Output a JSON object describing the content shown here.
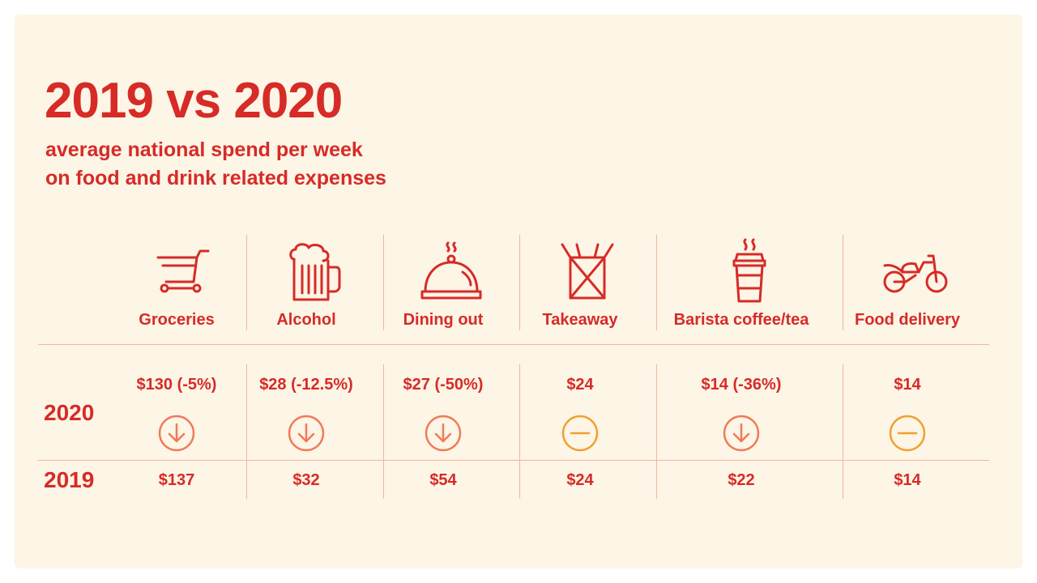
{
  "header": {
    "title": "2019 vs 2020",
    "subtitle_line1": "average national spend per week",
    "subtitle_line2": "on food and drink related expenses"
  },
  "row_labels": {
    "y2020": "2020",
    "y2019": "2019"
  },
  "colors": {
    "primary": "#d62b27",
    "down": "#f07a5a",
    "flat": "#f0a030",
    "background": "#fdf5e6",
    "divider": "#f1b5a2"
  },
  "columns": [
    {
      "label": "Groceries",
      "icon": "shopping-cart-icon",
      "v2020": "$130 (-5%)",
      "v2019": "$137",
      "trend": "down"
    },
    {
      "label": "Alcohol",
      "icon": "beer-mug-icon",
      "v2020": "$28 (-12.5%)",
      "v2019": "$32",
      "trend": "down"
    },
    {
      "label": "Dining out",
      "icon": "cloche-icon",
      "v2020": "$27 (-50%)",
      "v2019": "$54",
      "trend": "down"
    },
    {
      "label": "Takeaway",
      "icon": "takeaway-box-icon",
      "v2020": "$24",
      "v2019": "$24",
      "trend": "flat"
    },
    {
      "label": "Barista coffee/tea",
      "icon": "coffee-cup-icon",
      "v2020": "$14 (-36%)",
      "v2019": "$22",
      "trend": "down"
    },
    {
      "label": "Food delivery",
      "icon": "motorbike-icon",
      "v2020": "$14",
      "v2019": "$14",
      "trend": "flat"
    }
  ],
  "chart_data": {
    "type": "table",
    "title": "2019 vs 2020",
    "subtitle": "average national spend per week on food and drink related expenses",
    "categories": [
      "Groceries",
      "Alcohol",
      "Dining out",
      "Takeaway",
      "Barista coffee/tea",
      "Food delivery"
    ],
    "series": [
      {
        "name": "2020",
        "values": [
          130,
          28,
          27,
          24,
          14,
          14
        ],
        "change_labels": [
          "-5%",
          "-12.5%",
          "-50%",
          "",
          "-36%",
          ""
        ]
      },
      {
        "name": "2019",
        "values": [
          137,
          32,
          54,
          24,
          22,
          14
        ]
      }
    ],
    "trend": [
      "down",
      "down",
      "down",
      "flat",
      "down",
      "flat"
    ]
  }
}
